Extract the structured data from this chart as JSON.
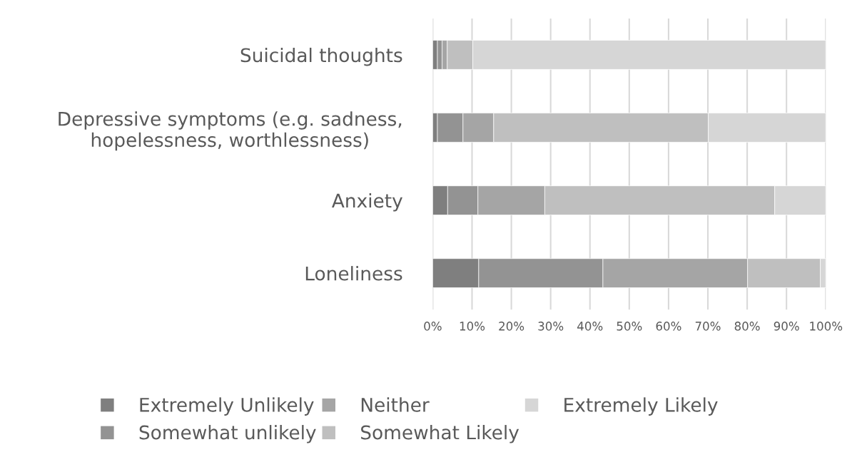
{
  "chart_data": {
    "type": "bar",
    "orientation": "horizontal",
    "stacked": true,
    "categories": [
      "Suicidal thoughts",
      "Depressive symptoms (e.g. sadness,\nhopelessness, worthlessness)",
      "Anxiety",
      "Loneliness"
    ],
    "series": [
      {
        "name": "Extremely Unlikely",
        "color": "#7f7f7f",
        "values": [
          1.2,
          1.2,
          3.8,
          11.7
        ]
      },
      {
        "name": "Somewhat unlikely",
        "color": "#939393",
        "values": [
          1.2,
          6.5,
          7.7,
          31.6
        ]
      },
      {
        "name": "Neither",
        "color": "#a5a5a5",
        "values": [
          1.3,
          7.8,
          17.0,
          36.8
        ]
      },
      {
        "name": "Somewhat Likely",
        "color": "#bfbfbf",
        "values": [
          6.5,
          54.6,
          58.5,
          18.5
        ]
      },
      {
        "name": "Extremely Likely",
        "color": "#d6d6d6",
        "values": [
          89.8,
          29.9,
          13.0,
          1.4
        ]
      }
    ],
    "xlim": [
      0,
      100
    ],
    "xticks": [
      {
        "value": 0,
        "label": "0%"
      },
      {
        "value": 10,
        "label": "10%"
      },
      {
        "value": 20,
        "label": "20%"
      },
      {
        "value": 30,
        "label": "30%"
      },
      {
        "value": 40,
        "label": "40%"
      },
      {
        "value": 50,
        "label": "50%"
      },
      {
        "value": 60,
        "label": "60%"
      },
      {
        "value": 70,
        "label": "70%"
      },
      {
        "value": 80,
        "label": "80%"
      },
      {
        "value": 90,
        "label": "90%"
      },
      {
        "value": 100,
        "label": "100%"
      }
    ],
    "grid": "x",
    "legend": "bottom"
  }
}
